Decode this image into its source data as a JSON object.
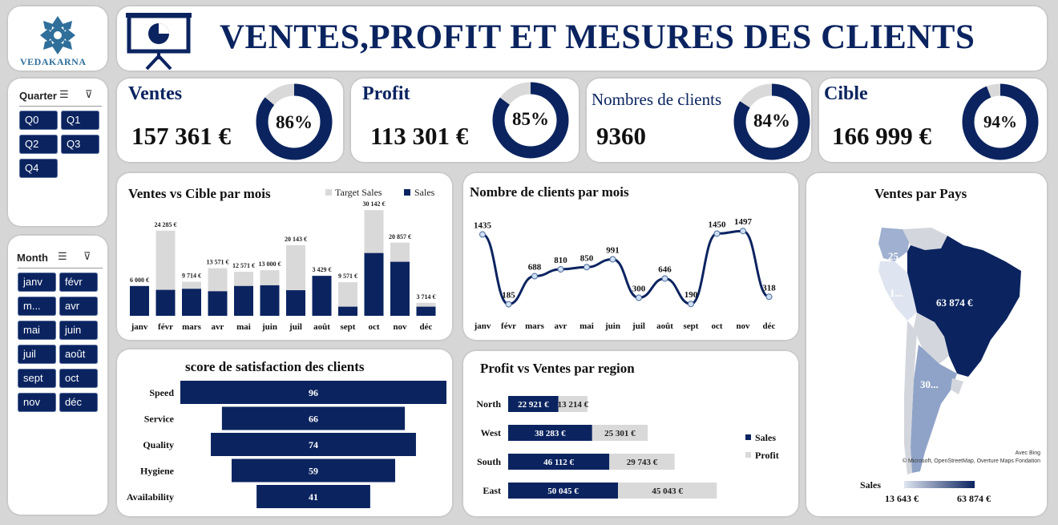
{
  "header": {
    "logo_text": "VEDAKARNA",
    "title": "VENTES,PROFIT ET MESURES DES CLIENTS"
  },
  "kpis": [
    {
      "label": "Ventes",
      "value": "157 361 €",
      "pct_label": "86%",
      "pct": 0.86
    },
    {
      "label": "Profit",
      "value": "113 301 €",
      "pct_label": "85%",
      "pct": 0.85
    },
    {
      "label": "Nombres de clients",
      "value": "9360",
      "pct_label": "84%",
      "pct": 0.84
    },
    {
      "label": "Cible",
      "value": "166 999 €",
      "pct_label": "94%",
      "pct": 0.94
    }
  ],
  "slicers": {
    "quarter": {
      "title": "Quarter",
      "items": [
        "Q0",
        "Q1",
        "Q2",
        "Q3",
        "Q4"
      ]
    },
    "month": {
      "title": "Month",
      "items": [
        "janv",
        "févr",
        "m...",
        "avr",
        "mai",
        "juin",
        "juil",
        "août",
        "sept",
        "oct",
        "nov",
        "déc"
      ]
    }
  },
  "colors": {
    "navy": "#0b2460",
    "grey": "#d9d9d9",
    "accent_light": "#9fb0d0"
  },
  "chart_data": [
    {
      "type": "bar",
      "title": "Ventes vs Cible par mois",
      "categories": [
        "janv",
        "févr",
        "mars",
        "avr",
        "mai",
        "juin",
        "juil",
        "août",
        "sept",
        "oct",
        "nov",
        "déc"
      ],
      "series": [
        {
          "name": "Target Sales",
          "values": [
            6000,
            24285,
            9714,
            13571,
            12571,
            13000,
            20143,
            3429,
            9571,
            30142,
            20857,
            3714
          ],
          "labels": [
            "6 000 €",
            "24 285 €",
            "9 714 €",
            "13 571 €",
            "12 571 €",
            "13 000 €",
            "20 143 €",
            "3 429 €",
            "9 571 €",
            "30 142 €",
            "20 857 €",
            "3 714 €"
          ]
        },
        {
          "name": "Sales",
          "values": [
            8500,
            7400,
            7700,
            7000,
            8500,
            8700,
            7300,
            11400,
            2600,
            17900,
            15400,
            2600
          ]
        }
      ],
      "legend": "top-right"
    },
    {
      "type": "line",
      "title": "Nombre de clients par mois",
      "categories": [
        "janv",
        "févr",
        "mars",
        "avr",
        "mai",
        "juin",
        "juil",
        "août",
        "sept",
        "oct",
        "nov",
        "déc"
      ],
      "values": [
        1435,
        185,
        688,
        810,
        850,
        991,
        300,
        646,
        190,
        1450,
        1497,
        318
      ]
    },
    {
      "type": "bar",
      "title": "score de satisfaction des clients",
      "categories": [
        "Speed",
        "Service",
        "Quality",
        "Hygiene",
        "Availability"
      ],
      "values": [
        96,
        66,
        74,
        59,
        41
      ]
    },
    {
      "type": "bar",
      "title": "Profit vs Ventes par region",
      "categories": [
        "North",
        "West",
        "South",
        "East"
      ],
      "series": [
        {
          "name": "Sales",
          "values": [
            22921,
            38283,
            46112,
            50045
          ],
          "labels": [
            "22 921 €",
            "38 283 €",
            "46 112 €",
            "50 045 €"
          ]
        },
        {
          "name": "Profit",
          "values": [
            13214,
            25301,
            29743,
            45043
          ],
          "labels": [
            "13 214 €",
            "25 301 €",
            "29 743 €",
            "45 043 €"
          ]
        }
      ],
      "legend": "right"
    }
  ],
  "map": {
    "title": "Ventes par Pays",
    "labels": {
      "brazil": "63 874 €",
      "colombia": "25...",
      "peru": "1...",
      "argentina": "30..."
    },
    "attribution_1": "Avec Bing",
    "attribution_2": "© Microsoft, OpenStreetMap, Overture Maps Fondation",
    "legend_title": "Sales",
    "legend_min": "13 643 €",
    "legend_max": "63 874 €"
  }
}
